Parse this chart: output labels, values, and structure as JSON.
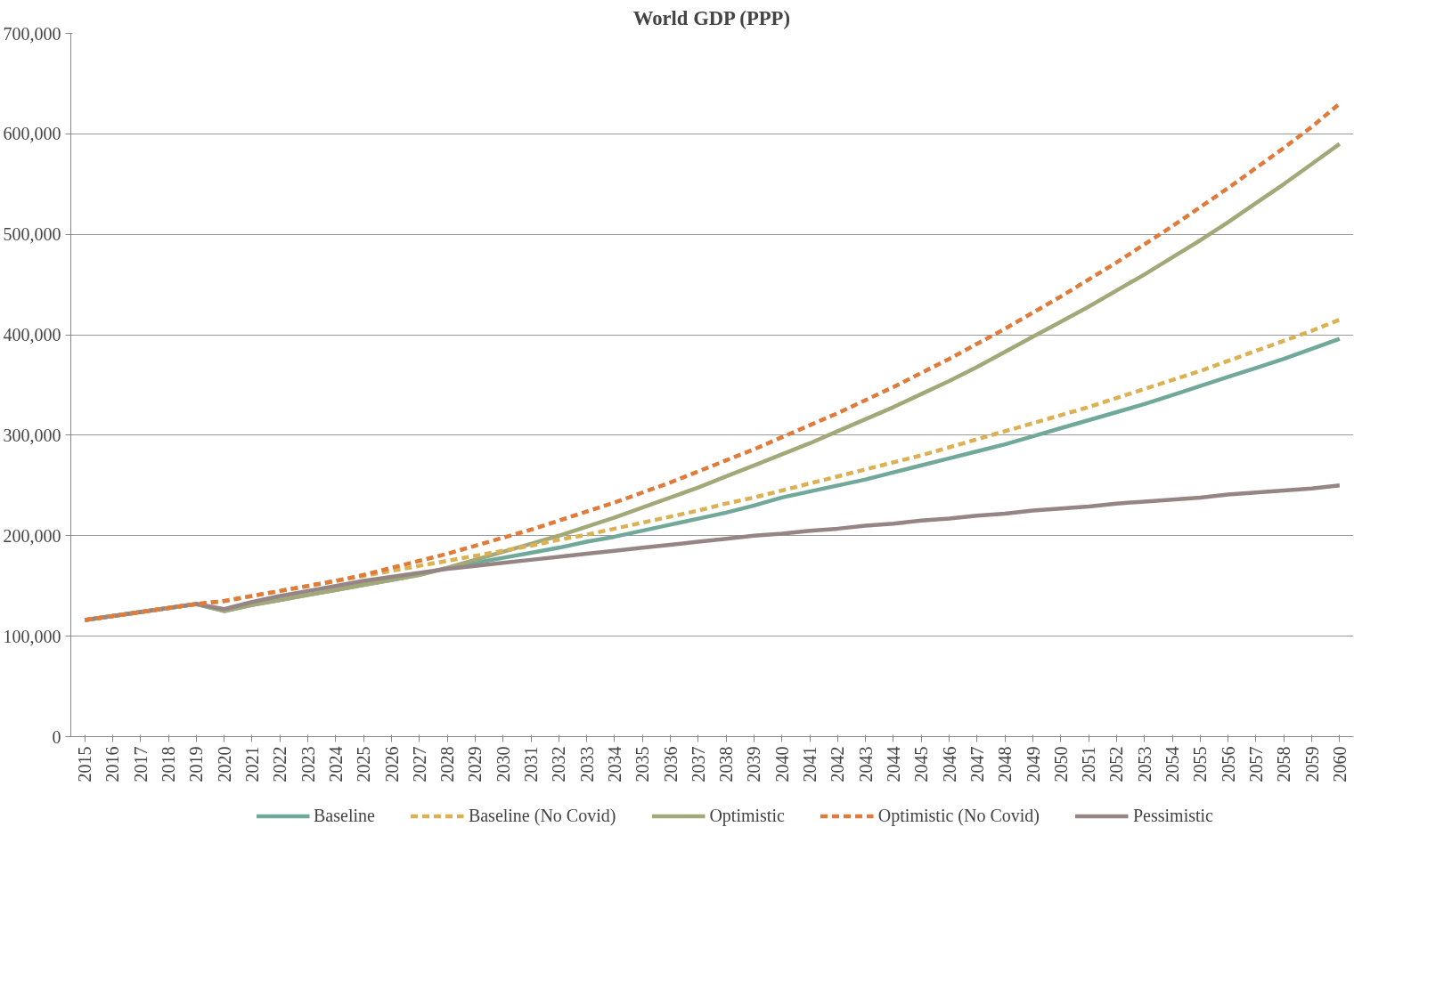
{
  "chart_data": {
    "type": "line",
    "title": "World GDP (PPP)",
    "categories": [
      "2015",
      "2016",
      "2017",
      "2018",
      "2019",
      "2020",
      "2021",
      "2022",
      "2023",
      "2024",
      "2025",
      "2026",
      "2027",
      "2028",
      "2029",
      "2030",
      "2031",
      "2032",
      "2033",
      "2034",
      "2035",
      "2036",
      "2037",
      "2038",
      "2039",
      "2040",
      "2041",
      "2042",
      "2043",
      "2044",
      "2045",
      "2046",
      "2047",
      "2048",
      "2049",
      "2050",
      "2051",
      "2052",
      "2053",
      "2054",
      "2055",
      "2056",
      "2057",
      "2058",
      "2059",
      "2060"
    ],
    "series": [
      {
        "name": "Baseline",
        "color": "#70a89a",
        "line_style": "solid",
        "values": [
          116000,
          120000,
          124000,
          128000,
          132000,
          125000,
          131000,
          136000,
          141000,
          146000,
          151000,
          156000,
          161000,
          168000,
          173000,
          178000,
          183000,
          188000,
          194000,
          199000,
          205000,
          211000,
          217000,
          223000,
          230000,
          238000,
          244000,
          250000,
          256000,
          263000,
          270000,
          277000,
          284000,
          291000,
          299000,
          307000,
          315000,
          323000,
          331000,
          340000,
          349000,
          358000,
          367000,
          376000,
          386000,
          396000
        ]
      },
      {
        "name": "Baseline (No Covid)",
        "color": "#dbb154",
        "line_style": "dashed",
        "values": [
          116000,
          120000,
          124000,
          128000,
          132000,
          135000,
          140000,
          145000,
          150000,
          155000,
          160000,
          165000,
          170000,
          175000,
          180000,
          185000,
          190000,
          196000,
          201000,
          207000,
          213000,
          219000,
          225000,
          232000,
          238000,
          245000,
          252000,
          259000,
          266000,
          273000,
          280000,
          288000,
          296000,
          304000,
          312000,
          320000,
          328000,
          337000,
          346000,
          355000,
          364000,
          374000,
          384000,
          394000,
          404000,
          415000
        ]
      },
      {
        "name": "Optimistic",
        "color": "#a2a878",
        "line_style": "solid",
        "values": [
          116000,
          120000,
          124000,
          128000,
          132000,
          125000,
          131000,
          136000,
          141000,
          146000,
          151000,
          156000,
          161000,
          168000,
          176000,
          184000,
          192000,
          200000,
          209000,
          218000,
          228000,
          238000,
          248000,
          259000,
          270000,
          281000,
          292000,
          304000,
          316000,
          328000,
          341000,
          354000,
          368000,
          383000,
          398000,
          413000,
          428000,
          444000,
          460000,
          477000,
          494000,
          512000,
          531000,
          550000,
          570000,
          590000
        ]
      },
      {
        "name": "Optimistic (No Covid)",
        "color": "#e07b3c",
        "line_style": "dashed",
        "values": [
          116000,
          120000,
          124000,
          128000,
          132000,
          135000,
          140000,
          145000,
          150000,
          155000,
          161000,
          168000,
          175000,
          182000,
          190000,
          198000,
          206000,
          215000,
          224000,
          233000,
          243000,
          253000,
          264000,
          275000,
          286000,
          298000,
          310000,
          322000,
          335000,
          348000,
          362000,
          376000,
          391000,
          406000,
          422000,
          438000,
          455000,
          472000,
          490000,
          508000,
          527000,
          546000,
          566000,
          586000,
          607000,
          630000
        ]
      },
      {
        "name": "Pessimistic",
        "color": "#958585",
        "line_style": "solid",
        "values": [
          116000,
          120000,
          124000,
          128000,
          132000,
          127000,
          134000,
          140000,
          145000,
          150000,
          155000,
          159000,
          163000,
          167000,
          170000,
          173000,
          176000,
          179000,
          182000,
          185000,
          188000,
          191000,
          194000,
          197000,
          200000,
          202000,
          205000,
          207000,
          210000,
          212000,
          215000,
          217000,
          220000,
          222000,
          225000,
          227000,
          229000,
          232000,
          234000,
          236000,
          238000,
          241000,
          243000,
          245000,
          247000,
          250000
        ]
      }
    ],
    "ylim": [
      0,
      700000
    ],
    "yticks": [
      {
        "value": 0,
        "label": "0"
      },
      {
        "value": 100000,
        "label": "100,000"
      },
      {
        "value": 200000,
        "label": "200,000"
      },
      {
        "value": 300000,
        "label": "300,000"
      },
      {
        "value": 400000,
        "label": "400,000"
      },
      {
        "value": 500000,
        "label": "500,000"
      },
      {
        "value": 600000,
        "label": "600,000"
      },
      {
        "value": 700000,
        "label": "700,000"
      }
    ],
    "grid": "y",
    "legend": "bottom",
    "marker": "none"
  }
}
